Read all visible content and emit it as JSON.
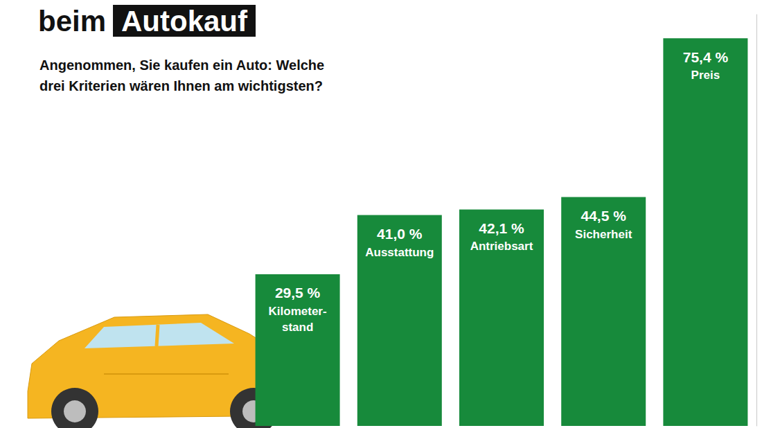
{
  "chart_data": {
    "type": "bar",
    "title": "beim Autokauf",
    "subtitle": "Angenommen, Sie kaufen ein Auto: Welche drei Kriterien wären Ihnen am wichtigsten?",
    "categories": [
      "Kilometer-stand",
      "Ausstattung",
      "Antriebsart",
      "Sicherheit",
      "Preis"
    ],
    "values": [
      29.5,
      41.0,
      42.1,
      44.5,
      75.4
    ],
    "value_labels": [
      "29,5 %",
      "41,0 %",
      "42,1 %",
      "44,5 %",
      "75,4 %"
    ],
    "color": "#178a3b",
    "ylim": [
      0,
      80
    ],
    "grid": false,
    "data_labels": true,
    "tick_labels": false
  }
}
